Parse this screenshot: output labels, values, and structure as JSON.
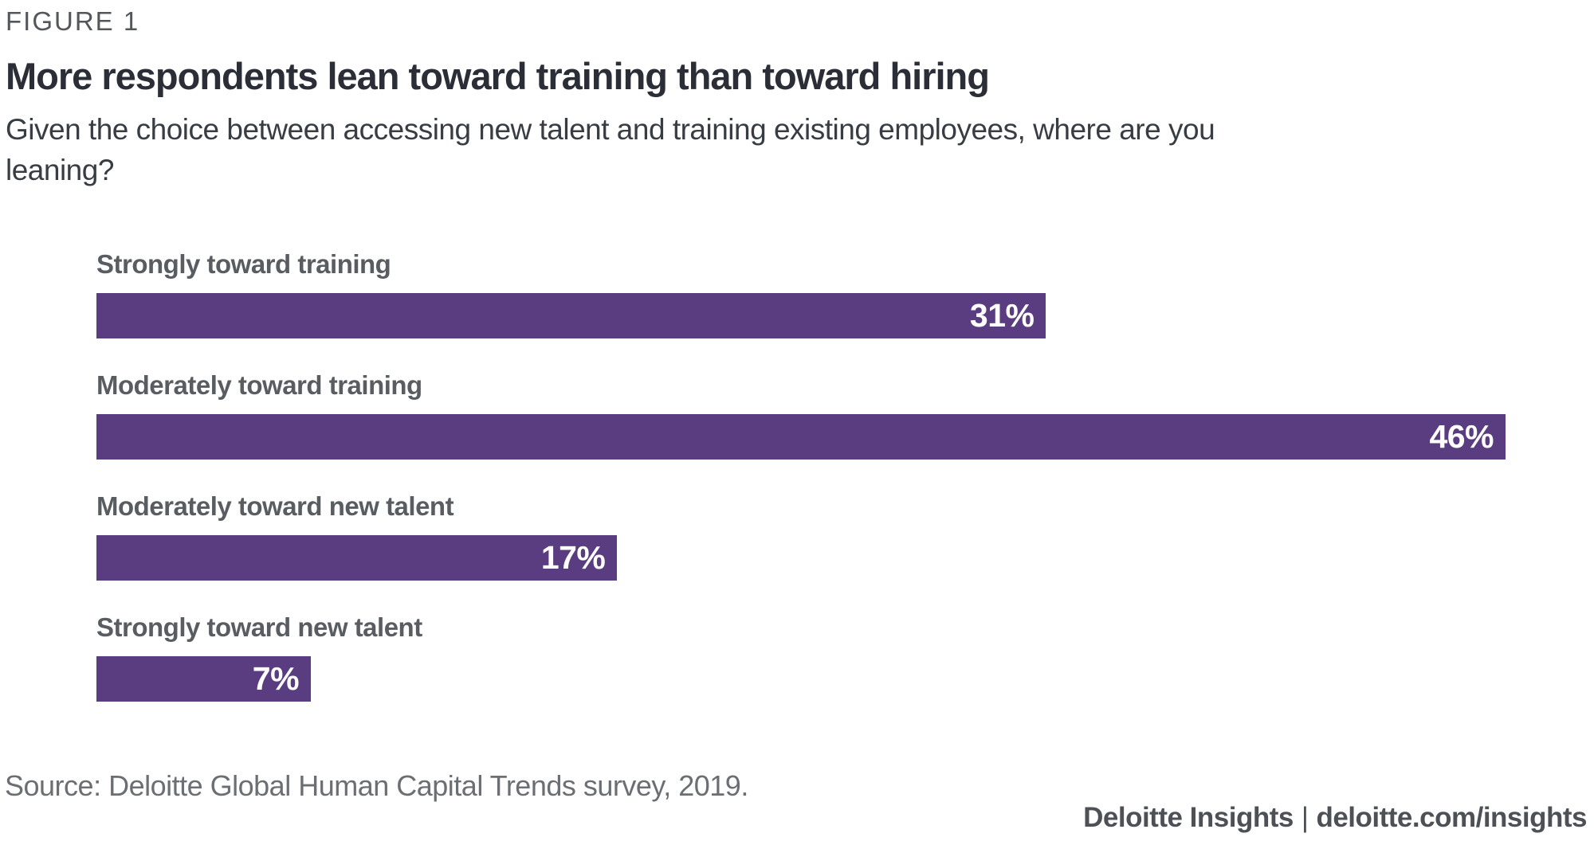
{
  "figure_label": "FIGURE 1",
  "title": "More respondents lean toward training than toward hiring",
  "subtitle": "Given the choice between accessing new talent and training existing employees, where are you\nleaning?",
  "source": "Source: Deloitte Global Human Capital Trends survey, 2019.",
  "footer": {
    "brand": "Deloitte Insights",
    "separator": "|",
    "url": "deloitte.com/insights"
  },
  "colors": {
    "bar": "#5a3d80",
    "title_text": "#2b2e36",
    "label_text": "#595d62",
    "muted_text": "#6b6e72",
    "value_text": "#ffffff"
  },
  "chart_data": {
    "type": "bar",
    "orientation": "horizontal",
    "categories": [
      "Strongly toward training",
      "Moderately toward training",
      "Moderately toward new talent",
      "Strongly toward new talent"
    ],
    "values": [
      31,
      46,
      17,
      7
    ],
    "value_labels": [
      "31%",
      "46%",
      "17%",
      "7%"
    ],
    "unit": "%",
    "xlim": [
      0,
      46
    ],
    "grid": false,
    "legend": false,
    "value_label_position": "inside-end",
    "title": "More respondents lean toward training than toward hiring",
    "xlabel": "",
    "ylabel": ""
  }
}
